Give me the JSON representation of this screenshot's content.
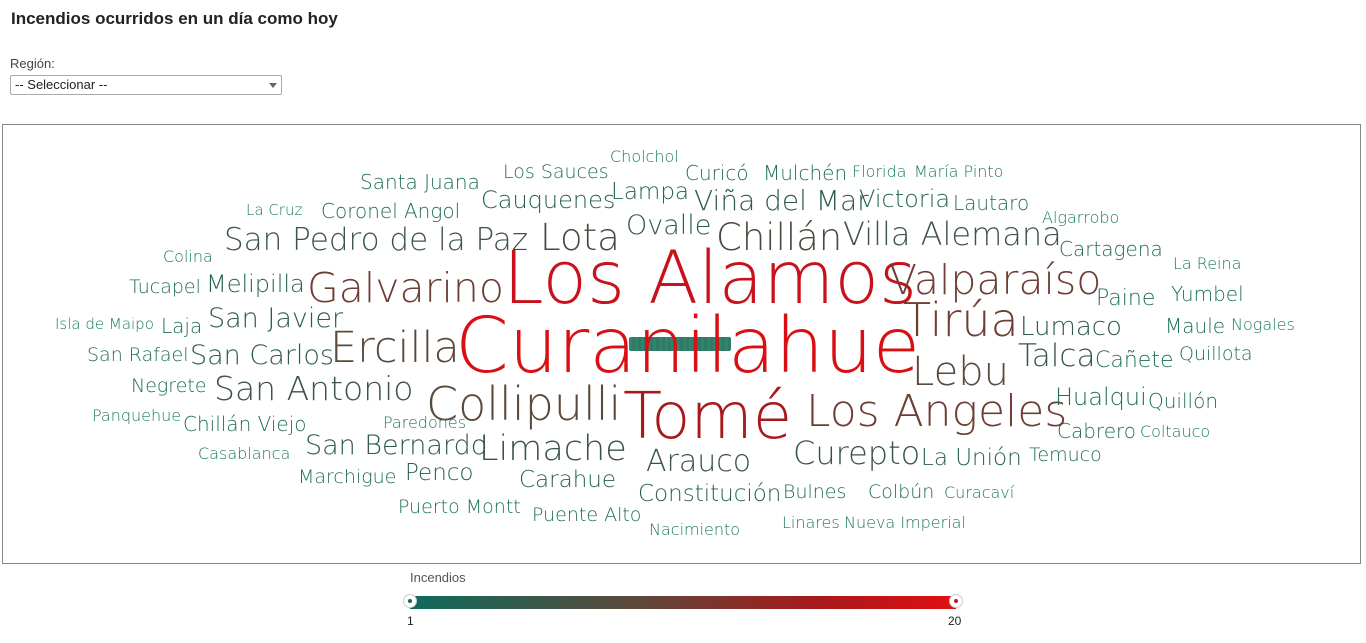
{
  "header": {
    "title": "Incendios ocurridos en un día como hoy"
  },
  "filter": {
    "label": "Región:",
    "selected": "-- Seleccionar --"
  },
  "legend": {
    "title": "Incendios",
    "min": "1",
    "max": "20",
    "colors": [
      "#0e6b5c",
      "#5a4a3c",
      "#a8191c",
      "#e00f12"
    ]
  },
  "cloud": {
    "words": [
      {
        "text": "Cholchol",
        "color": "#1a7a5e"
      },
      {
        "text": "Los Sauces",
        "color": "#1f6e57"
      },
      {
        "text": "Curicó",
        "color": "#1f6e57"
      },
      {
        "text": "Mulchén",
        "color": "#1f6e57"
      },
      {
        "text": "Florida",
        "color": "#1a7a5e"
      },
      {
        "text": "María Pinto",
        "color": "#1a7a5e"
      },
      {
        "text": "Santa Juana",
        "color": "#1f6e57"
      },
      {
        "text": "Lampa",
        "color": "#25624f"
      },
      {
        "text": "Cauquenes",
        "color": "#25624f"
      },
      {
        "text": "Viña del Mar",
        "color": "#2c5b4a"
      },
      {
        "text": "Victoria",
        "color": "#25624f"
      },
      {
        "text": "Lautaro",
        "color": "#1f6e57"
      },
      {
        "text": "La Cruz",
        "color": "#1a7a5e"
      },
      {
        "text": "Coronel",
        "color": "#1f6e57"
      },
      {
        "text": "Angol",
        "color": "#1f6e57"
      },
      {
        "text": "Ovalle",
        "color": "#2c5b4a"
      },
      {
        "text": "Algarrobo",
        "color": "#1a7a5e"
      },
      {
        "text": "Lota",
        "color": "#4a4a40"
      },
      {
        "text": "Chillán",
        "color": "#4a4a40"
      },
      {
        "text": "Villa Alemana",
        "color": "#3a5446"
      },
      {
        "text": "Colina",
        "color": "#1a7a5e"
      },
      {
        "text": "San Pedro de la Paz",
        "color": "#3a5446"
      },
      {
        "text": "Cartagena",
        "color": "#1f6e57"
      },
      {
        "text": "La Reina",
        "color": "#1a7a5e"
      },
      {
        "text": "Los Alamos",
        "color": "#c8111a"
      },
      {
        "text": "Tucapel",
        "color": "#1f6e57"
      },
      {
        "text": "Melipilla",
        "color": "#25624f"
      },
      {
        "text": "Galvarino",
        "color": "#6e3e34"
      },
      {
        "text": "Valparaíso",
        "color": "#6e3e34"
      },
      {
        "text": "Paine",
        "color": "#1f6e57"
      },
      {
        "text": "Yumbel",
        "color": "#1f6e57"
      },
      {
        "text": "Isla de Maipo",
        "color": "#1a7a5e"
      },
      {
        "text": "Laja",
        "color": "#1f6e57"
      },
      {
        "text": "San Javier",
        "color": "#2c5b4a"
      },
      {
        "text": "Tirúa",
        "color": "#6e3e34"
      },
      {
        "text": "Lumaco",
        "color": "#2c5b4a"
      },
      {
        "text": "Maule",
        "color": "#1f6e57"
      },
      {
        "text": "Nogales",
        "color": "#1a7a5e"
      },
      {
        "text": "San Rafael",
        "color": "#1f6e57"
      },
      {
        "text": "San Carlos",
        "color": "#2c5b4a"
      },
      {
        "text": "Ercilla",
        "color": "#5a4a3c"
      },
      {
        "text": "Curanilahue",
        "color": "#d90f14"
      },
      {
        "text": "Talca",
        "color": "#3a5446"
      },
      {
        "text": "Cañete",
        "color": "#1f6e57"
      },
      {
        "text": "Quillota",
        "color": "#1f6e57"
      },
      {
        "text": "Lebu",
        "color": "#5a4a3c"
      },
      {
        "text": "Negrete",
        "color": "#1f6e57"
      },
      {
        "text": "San Antonio",
        "color": "#3a5446"
      },
      {
        "text": "Panquehue",
        "color": "#1a7a5e"
      },
      {
        "text": "Collipulli",
        "color": "#5a4a3c"
      },
      {
        "text": "Tomé",
        "color": "#a8191c"
      },
      {
        "text": "Los Angeles",
        "color": "#6e3e34"
      },
      {
        "text": "Hualqui",
        "color": "#1f6e57"
      },
      {
        "text": "Quillón",
        "color": "#1f6e57"
      },
      {
        "text": "Chillán Viejo",
        "color": "#1f6e57"
      },
      {
        "text": "Paredones",
        "color": "#1a7a5e"
      },
      {
        "text": "Cabrero",
        "color": "#1f6e57"
      },
      {
        "text": "Coltauco",
        "color": "#1a7a5e"
      },
      {
        "text": "Casablanca",
        "color": "#1a7a5e"
      },
      {
        "text": "San Bernardo",
        "color": "#2c5b4a"
      },
      {
        "text": "Limache",
        "color": "#3a5446"
      },
      {
        "text": "Curepto",
        "color": "#3a5446"
      },
      {
        "text": "Temuco",
        "color": "#1f6e57"
      },
      {
        "text": "Arauco",
        "color": "#3a5446"
      },
      {
        "text": "La Unión",
        "color": "#25624f"
      },
      {
        "text": "Marchigue",
        "color": "#1f6e57"
      },
      {
        "text": "Penco",
        "color": "#25624f"
      },
      {
        "text": "Carahue",
        "color": "#25624f"
      },
      {
        "text": "Constitución",
        "color": "#25624f"
      },
      {
        "text": "Bulnes",
        "color": "#1f6e57"
      },
      {
        "text": "Colbún",
        "color": "#1f6e57"
      },
      {
        "text": "Curacaví",
        "color": "#1a7a5e"
      },
      {
        "text": "Puerto Montt",
        "color": "#1f6e57"
      },
      {
        "text": "Puente Alto",
        "color": "#1f6e57"
      },
      {
        "text": "Nacimiento",
        "color": "#1a7a5e"
      },
      {
        "text": "Linares",
        "color": "#1a7a5e"
      },
      {
        "text": "Nueva Imperial",
        "color": "#1a7a5e"
      }
    ]
  }
}
